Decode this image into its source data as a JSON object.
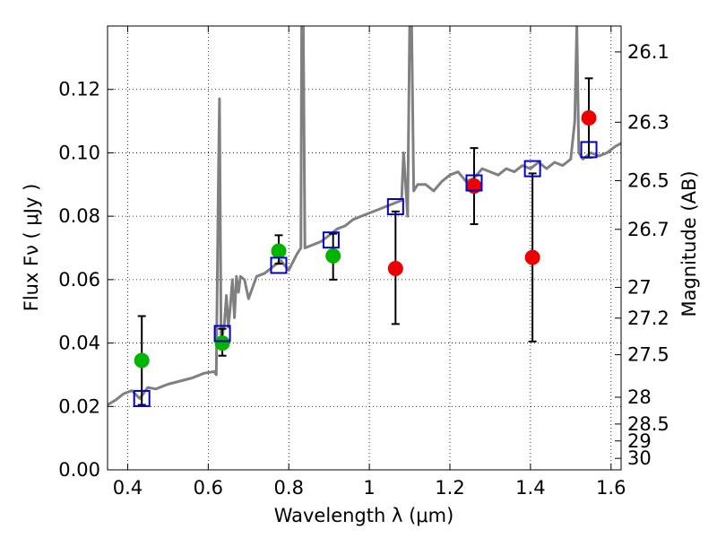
{
  "chart_data": {
    "type": "scatter",
    "xlabel": "Wavelength  λ (μm)",
    "ylabel": "Flux  Fν  ( μJy )",
    "y2label": "Magnitude (AB)",
    "xlim": [
      0.35,
      1.625
    ],
    "ylim": [
      0.0,
      0.14
    ],
    "x_ticks": [
      0.4,
      0.6,
      0.8,
      1.0,
      1.2,
      1.4,
      1.6
    ],
    "x_tick_labels": [
      "0.4",
      "0.6",
      "0.8",
      "1",
      "1.2",
      "1.4",
      "1.6"
    ],
    "y_ticks": [
      0.0,
      0.02,
      0.04,
      0.06,
      0.08,
      0.1,
      0.12
    ],
    "y_tick_labels": [
      "0.00",
      "0.02",
      "0.04",
      "0.06",
      "0.08",
      "0.10",
      "0.12"
    ],
    "mag_ticks": [
      "26.1",
      "26.3",
      "26.5",
      "26.7",
      "27",
      "27.2",
      "27.5",
      "28",
      "28.5",
      "29",
      "30"
    ],
    "grid": true,
    "colors": {
      "model": "#808080",
      "green": "#00b400",
      "red": "#ee0000",
      "square": "#0000cc",
      "errorbar": "#000000"
    },
    "model_spectrum": {
      "x": [
        0.35,
        0.37,
        0.39,
        0.41,
        0.43,
        0.45,
        0.47,
        0.5,
        0.53,
        0.56,
        0.59,
        0.615,
        0.62,
        0.625,
        0.628,
        0.632,
        0.64,
        0.645,
        0.65,
        0.655,
        0.66,
        0.665,
        0.67,
        0.675,
        0.68,
        0.69,
        0.7,
        0.72,
        0.74,
        0.76,
        0.78,
        0.8,
        0.82,
        0.83,
        0.832,
        0.836,
        0.84,
        0.86,
        0.88,
        0.9,
        0.92,
        0.94,
        0.96,
        0.98,
        1.0,
        1.02,
        1.04,
        1.06,
        1.08,
        1.085,
        1.095,
        1.1,
        1.105,
        1.11,
        1.12,
        1.14,
        1.16,
        1.18,
        1.2,
        1.22,
        1.24,
        1.26,
        1.28,
        1.3,
        1.32,
        1.34,
        1.36,
        1.38,
        1.4,
        1.42,
        1.44,
        1.46,
        1.48,
        1.5,
        1.51,
        1.515,
        1.52,
        1.53,
        1.55,
        1.57,
        1.59,
        1.61,
        1.625
      ],
      "y": [
        0.0205,
        0.022,
        0.024,
        0.025,
        0.0225,
        0.026,
        0.0255,
        0.027,
        0.028,
        0.029,
        0.0305,
        0.031,
        0.03,
        0.09,
        0.117,
        0.04,
        0.046,
        0.055,
        0.045,
        0.052,
        0.06,
        0.048,
        0.061,
        0.056,
        0.061,
        0.06,
        0.054,
        0.061,
        0.062,
        0.064,
        0.066,
        0.063,
        0.068,
        0.07,
        0.14,
        0.14,
        0.07,
        0.071,
        0.072,
        0.074,
        0.076,
        0.077,
        0.079,
        0.08,
        0.081,
        0.082,
        0.083,
        0.084,
        0.085,
        0.1,
        0.08,
        0.14,
        0.14,
        0.088,
        0.09,
        0.09,
        0.088,
        0.091,
        0.093,
        0.094,
        0.091,
        0.092,
        0.095,
        0.094,
        0.093,
        0.095,
        0.094,
        0.096,
        0.095,
        0.097,
        0.095,
        0.097,
        0.096,
        0.098,
        0.11,
        0.14,
        0.1,
        0.098,
        0.1,
        0.099,
        0.1,
        0.102,
        0.103
      ]
    },
    "series": [
      {
        "marker": "circle-green",
        "points": [
          {
            "x": 0.435,
            "y": 0.0345,
            "err_low": 0.0205,
            "err_high": 0.0485
          },
          {
            "x": 0.635,
            "y": 0.04,
            "err_low": 0.036,
            "err_high": 0.0445
          },
          {
            "x": 0.775,
            "y": 0.069,
            "err_low": 0.065,
            "err_high": 0.074
          },
          {
            "x": 0.91,
            "y": 0.0675,
            "err_low": 0.06,
            "err_high": 0.0745
          }
        ]
      },
      {
        "marker": "circle-red",
        "points": [
          {
            "x": 1.065,
            "y": 0.0635,
            "err_low": 0.046,
            "err_high": 0.0815
          },
          {
            "x": 1.26,
            "y": 0.0895,
            "err_low": 0.0775,
            "err_high": 0.1015
          },
          {
            "x": 1.405,
            "y": 0.067,
            "err_low": 0.0405,
            "err_high": 0.0935
          },
          {
            "x": 1.545,
            "y": 0.111,
            "err_low": 0.0985,
            "err_high": 0.1235
          }
        ]
      },
      {
        "marker": "square-blue",
        "points": [
          {
            "x": 0.435,
            "y": 0.0225
          },
          {
            "x": 0.635,
            "y": 0.043
          },
          {
            "x": 0.775,
            "y": 0.0645
          },
          {
            "x": 0.905,
            "y": 0.0725
          },
          {
            "x": 1.065,
            "y": 0.083
          },
          {
            "x": 1.26,
            "y": 0.0905
          },
          {
            "x": 1.405,
            "y": 0.095
          },
          {
            "x": 1.545,
            "y": 0.101
          }
        ]
      }
    ]
  }
}
